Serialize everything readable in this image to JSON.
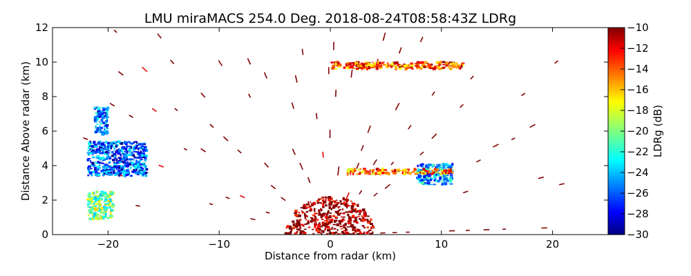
{
  "chart_data": {
    "type": "heatmap",
    "title": "LMU miraMACS 254.0 Deg. 2018-08-24T08:58:43Z  LDRg",
    "xlabel": "Distance from radar (km)",
    "ylabel": "Distance Above radar  (km)",
    "xlim": [
      -25,
      25
    ],
    "ylim": [
      0,
      12
    ],
    "x_ticks": [
      -20,
      -10,
      0,
      10,
      20
    ],
    "y_ticks": [
      0,
      2,
      4,
      6,
      8,
      10,
      12
    ],
    "x_tick_labels": [
      "−20",
      "−10",
      "0",
      "10",
      "20"
    ],
    "y_tick_labels": [
      "0",
      "2",
      "4",
      "6",
      "8",
      "10",
      "12"
    ],
    "colorbar": {
      "label": "LDRg (dB)",
      "range": [
        -30,
        -10
      ],
      "ticks": [
        -10,
        -12,
        -14,
        -16,
        -18,
        -20,
        -22,
        -24,
        -26,
        -28,
        -30
      ],
      "tick_labels": [
        "−10",
        "−12",
        "−14",
        "−16",
        "−18",
        "−20",
        "−22",
        "−24",
        "−26",
        "−28",
        "−30"
      ],
      "colormap": "jet"
    },
    "scan": {
      "range_rings_km": [
        1.5,
        2.5,
        3.5,
        4.5,
        5.6,
        6.8,
        8.0,
        9.3,
        10.7,
        12.2,
        13.8,
        15.5,
        17.2,
        19.0,
        20.8,
        22.5
      ],
      "default_ldr_db": -10
    },
    "features": [
      {
        "name": "low-ldr cloud left upper",
        "x": [
          -21.2,
          -20.0
        ],
        "y": [
          5.8,
          7.4
        ],
        "ldr_db": -25
      },
      {
        "name": "low-ldr cloud left band",
        "x": [
          -21.8,
          -16.5
        ],
        "y": [
          3.4,
          5.4
        ],
        "ldr_db": -26
      },
      {
        "name": "low-ldr cloud left bottom",
        "x": [
          -21.8,
          -19.5
        ],
        "y": [
          0.9,
          2.5
        ],
        "ldr_db": -20
      },
      {
        "name": "melting layer patch right",
        "x": [
          7.8,
          11.0
        ],
        "y": [
          2.9,
          4.1
        ],
        "ldr_db": -24
      },
      {
        "name": "bright band streak",
        "x": [
          1.5,
          11.0
        ],
        "y": [
          3.5,
          3.8
        ],
        "ldr_db": -15
      },
      {
        "name": "upper streak",
        "x": [
          0.0,
          12.0
        ],
        "y": [
          9.6,
          10.0
        ],
        "ldr_db": -14
      },
      {
        "name": "ground clutter",
        "x": [
          -4.0,
          4.0
        ],
        "y": [
          0.0,
          2.2
        ],
        "ldr_db": -10
      }
    ]
  }
}
